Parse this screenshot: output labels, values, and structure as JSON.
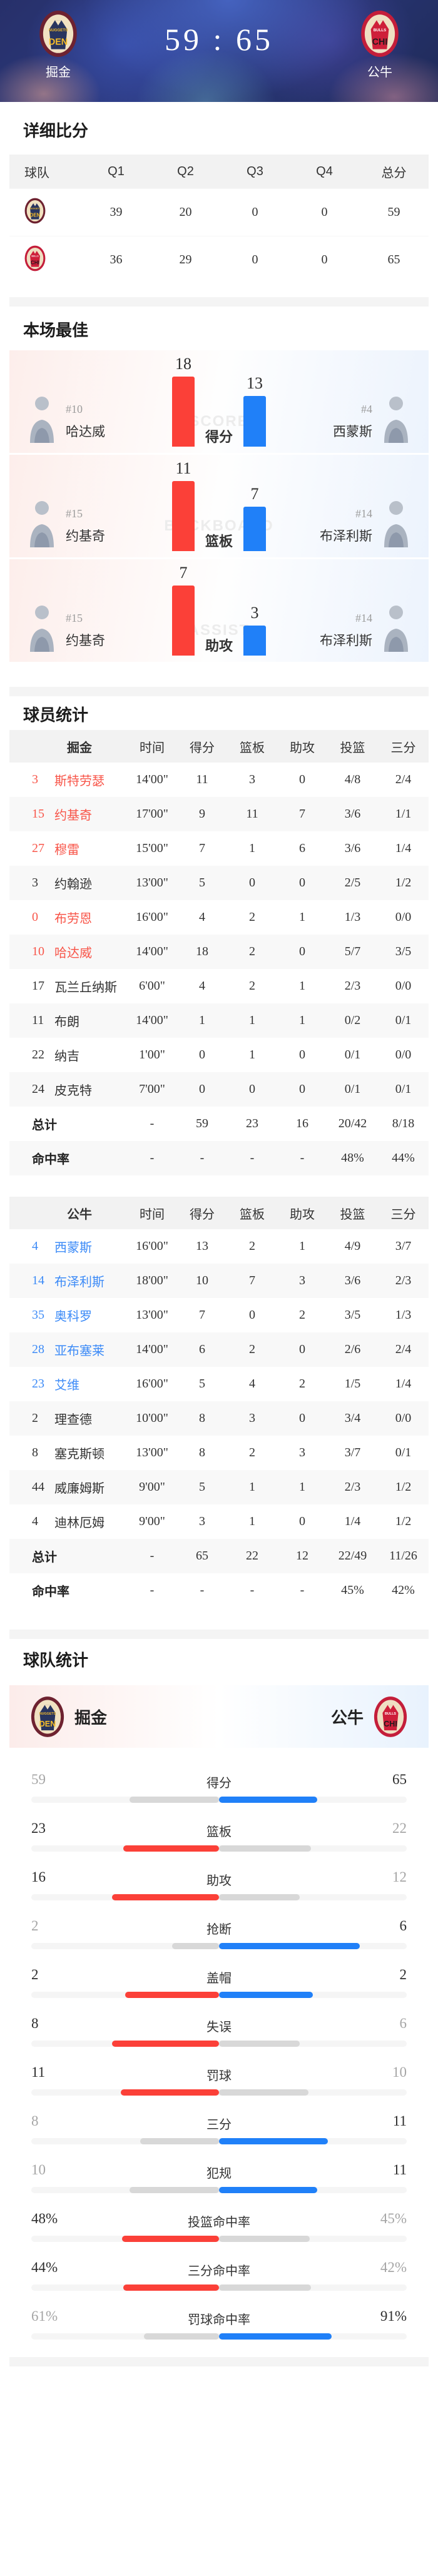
{
  "colors": {
    "red": "#f8564a",
    "red_bar": "#fb4038",
    "blue": "#3d8bf7",
    "blue_bar": "#2080f8",
    "gray_bar": "#d8d8d8"
  },
  "header": {
    "left_team": {
      "name": "掘金",
      "abbr": "DEN",
      "label": "NUGGETS"
    },
    "right_team": {
      "name": "公牛",
      "abbr": "CHI",
      "label": "BULLS"
    },
    "score_left": "59",
    "score_divider": ":",
    "score_right": "65"
  },
  "section_titles": {
    "quarters": "详细比分",
    "best": "本场最佳",
    "players": "球员统计",
    "teams": "球队统计"
  },
  "quarter_table": {
    "headers": [
      "球队",
      "Q1",
      "Q2",
      "Q3",
      "Q4",
      "总分"
    ],
    "rows": [
      {
        "team": "DEN",
        "scores": [
          "39",
          "20",
          "0",
          "0",
          "59"
        ]
      },
      {
        "team": "CHI",
        "scores": [
          "36",
          "29",
          "0",
          "0",
          "65"
        ]
      }
    ]
  },
  "best_players": [
    {
      "stat": "得分",
      "watermark": "SCORE",
      "left": {
        "number": "#10",
        "name": "哈达威",
        "value": 18
      },
      "right": {
        "number": "#4",
        "name": "西蒙斯",
        "value": 13
      }
    },
    {
      "stat": "篮板",
      "watermark": "BACKBOARD",
      "left": {
        "number": "#15",
        "name": "约基奇",
        "value": 11
      },
      "right": {
        "number": "#14",
        "name": "布泽利斯",
        "value": 7
      }
    },
    {
      "stat": "助攻",
      "watermark": "ASSIST",
      "left": {
        "number": "#15",
        "name": "约基奇",
        "value": 7
      },
      "right": {
        "number": "#14",
        "name": "布泽利斯",
        "value": 3
      }
    }
  ],
  "player_stats": {
    "columns": [
      "时间",
      "得分",
      "篮板",
      "助攻",
      "投篮",
      "三分"
    ],
    "total_label": "总计",
    "pct_label": "命中率",
    "teams": [
      {
        "team": "掘金",
        "accent": "red",
        "abbr": "DEN",
        "rows": [
          {
            "no": "3",
            "name": "斯特劳瑟",
            "starter": true,
            "stats": [
              "14'00\"",
              "11",
              "3",
              "0",
              "4/8",
              "2/4"
            ]
          },
          {
            "no": "15",
            "name": "约基奇",
            "starter": true,
            "stats": [
              "17'00\"",
              "9",
              "11",
              "7",
              "3/6",
              "1/1"
            ]
          },
          {
            "no": "27",
            "name": "穆雷",
            "starter": true,
            "stats": [
              "15'00\"",
              "7",
              "1",
              "6",
              "3/6",
              "1/4"
            ]
          },
          {
            "no": "3",
            "name": "约翰逊",
            "starter": false,
            "stats": [
              "13'00\"",
              "5",
              "0",
              "0",
              "2/5",
              "1/2"
            ]
          },
          {
            "no": "0",
            "name": "布劳恩",
            "starter": true,
            "stats": [
              "16'00\"",
              "4",
              "2",
              "1",
              "1/3",
              "0/0"
            ]
          },
          {
            "no": "10",
            "name": "哈达威",
            "starter": true,
            "stats": [
              "14'00\"",
              "18",
              "2",
              "0",
              "5/7",
              "3/5"
            ]
          },
          {
            "no": "17",
            "name": "瓦兰丘纳斯",
            "starter": false,
            "stats": [
              "6'00\"",
              "4",
              "2",
              "1",
              "2/3",
              "0/0"
            ]
          },
          {
            "no": "11",
            "name": "布朗",
            "starter": false,
            "stats": [
              "14'00\"",
              "1",
              "1",
              "1",
              "0/2",
              "0/1"
            ]
          },
          {
            "no": "22",
            "name": "纳吉",
            "starter": false,
            "stats": [
              "1'00\"",
              "0",
              "1",
              "0",
              "0/1",
              "0/0"
            ]
          },
          {
            "no": "24",
            "name": "皮克特",
            "starter": false,
            "stats": [
              "7'00\"",
              "0",
              "0",
              "0",
              "0/1",
              "0/1"
            ]
          }
        ],
        "total": [
          "-",
          "59",
          "23",
          "16",
          "20/42",
          "8/18"
        ],
        "pct": [
          "-",
          "-",
          "-",
          "-",
          "48%",
          "44%"
        ]
      },
      {
        "team": "公牛",
        "accent": "blue",
        "abbr": "CHI",
        "rows": [
          {
            "no": "4",
            "name": "西蒙斯",
            "starter": true,
            "stats": [
              "16'00\"",
              "13",
              "2",
              "1",
              "4/9",
              "3/7"
            ]
          },
          {
            "no": "14",
            "name": "布泽利斯",
            "starter": true,
            "stats": [
              "18'00\"",
              "10",
              "7",
              "3",
              "3/6",
              "2/3"
            ]
          },
          {
            "no": "35",
            "name": "奥科罗",
            "starter": true,
            "stats": [
              "13'00\"",
              "7",
              "0",
              "2",
              "3/5",
              "1/3"
            ]
          },
          {
            "no": "28",
            "name": "亚布塞莱",
            "starter": true,
            "stats": [
              "14'00\"",
              "6",
              "2",
              "0",
              "2/6",
              "2/4"
            ]
          },
          {
            "no": "23",
            "name": "艾维",
            "starter": true,
            "stats": [
              "16'00\"",
              "5",
              "4",
              "2",
              "1/5",
              "1/4"
            ]
          },
          {
            "no": "2",
            "name": "理查德",
            "starter": false,
            "stats": [
              "10'00\"",
              "8",
              "3",
              "0",
              "3/4",
              "0/0"
            ]
          },
          {
            "no": "8",
            "name": "塞克斯顿",
            "starter": false,
            "stats": [
              "13'00\"",
              "8",
              "2",
              "3",
              "3/7",
              "0/1"
            ]
          },
          {
            "no": "44",
            "name": "威廉姆斯",
            "starter": false,
            "stats": [
              "9'00\"",
              "5",
              "1",
              "1",
              "2/3",
              "1/2"
            ]
          },
          {
            "no": "4",
            "name": "迪林厄姆",
            "starter": false,
            "stats": [
              "9'00\"",
              "3",
              "1",
              "0",
              "1/4",
              "1/2"
            ]
          }
        ],
        "total": [
          "-",
          "65",
          "22",
          "12",
          "22/49",
          "11/26"
        ],
        "pct": [
          "-",
          "-",
          "-",
          "-",
          "45%",
          "42%"
        ]
      }
    ]
  },
  "team_stats": {
    "left": {
      "name": "掘金",
      "abbr": "DEN"
    },
    "right": {
      "name": "公牛",
      "abbr": "CHI"
    },
    "rows": [
      {
        "label": "得分",
        "left": "59",
        "right": "65",
        "winner": "right"
      },
      {
        "label": "篮板",
        "left": "23",
        "right": "22",
        "winner": "left"
      },
      {
        "label": "助攻",
        "left": "16",
        "right": "12",
        "winner": "left"
      },
      {
        "label": "抢断",
        "left": "2",
        "right": "6",
        "winner": "right"
      },
      {
        "label": "盖帽",
        "left": "2",
        "right": "2",
        "winner": "tie"
      },
      {
        "label": "失误",
        "left": "8",
        "right": "6",
        "winner": "left"
      },
      {
        "label": "罚球",
        "left": "11",
        "right": "10",
        "winner": "left"
      },
      {
        "label": "三分",
        "left": "8",
        "right": "11",
        "winner": "right"
      },
      {
        "label": "犯规",
        "left": "10",
        "right": "11",
        "winner": "right"
      },
      {
        "label": "投篮命中率",
        "left": "48%",
        "right": "45%",
        "winner": "left"
      },
      {
        "label": "三分命中率",
        "left": "44%",
        "right": "42%",
        "winner": "left"
      },
      {
        "label": "罚球命中率",
        "left": "61%",
        "right": "91%",
        "winner": "right"
      }
    ]
  }
}
